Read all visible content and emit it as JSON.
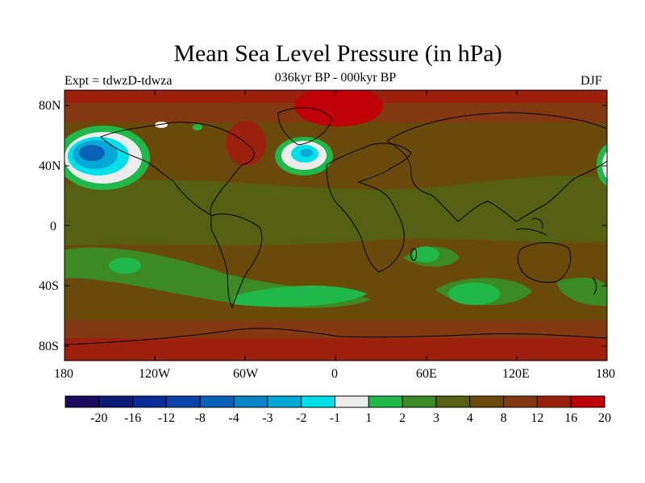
{
  "title": "Mean Sea Level Pressure (in hPa)",
  "subtitle": "036kyr BP - 000kyr BP",
  "experiment": "Expt = tdwzD-tdwza",
  "season": "DJF",
  "lat_ticks": [
    "80N",
    "40N",
    "0",
    "40S",
    "80S"
  ],
  "lon_ticks": [
    "180",
    "120W",
    "60W",
    "0",
    "60E",
    "120E",
    "180"
  ],
  "colorbar": {
    "labels": [
      "-20",
      "-16",
      "-12",
      "-8",
      "-4",
      "-3",
      "-2",
      "-1",
      "1",
      "2",
      "3",
      "4",
      "8",
      "12",
      "16",
      "20"
    ],
    "colors": [
      "#1a0a5e",
      "#0c1a78",
      "#0a2a96",
      "#0a44a8",
      "#0a62b8",
      "#0a84c8",
      "#06a8d8",
      "#00e0e8",
      "#ececec",
      "#20b84a",
      "#3c8a24",
      "#566012",
      "#6a4a0a",
      "#823810",
      "#9c200e",
      "#c00008"
    ]
  },
  "colors": {
    "background_field": "#6a4a0a",
    "coastline": "#000000"
  }
}
